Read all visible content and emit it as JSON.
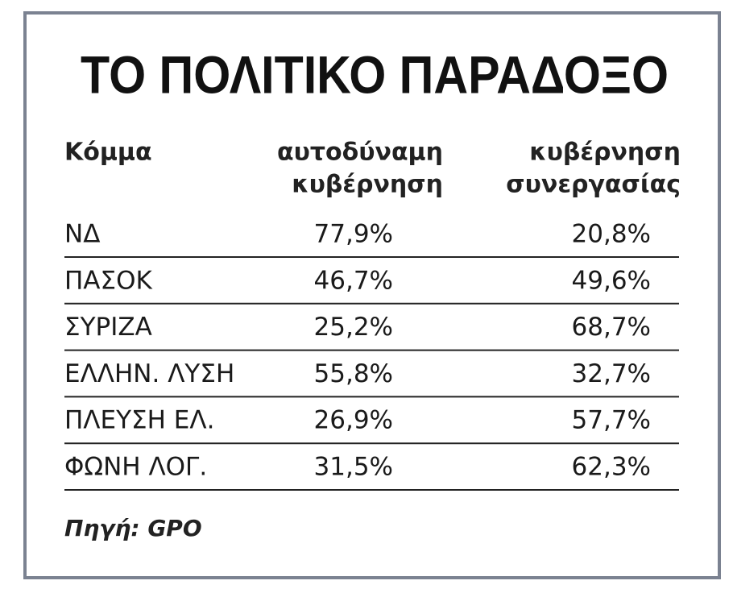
{
  "title": "ΤΟ ΠΟΛΙΤΙΚΟ ΠΑΡΑΔΟΞΟ",
  "table": {
    "header": [
      [
        "Κόμμα"
      ],
      [
        "αυτοδύναμη",
        "κυβέρνηση"
      ],
      [
        "κυβέρνηση",
        "συνεργασίας"
      ]
    ],
    "rows": [
      [
        "ΝΔ",
        "77,9%",
        "20,8%"
      ],
      [
        "ΠΑΣΟΚ",
        "46,7%",
        "49,6%"
      ],
      [
        "ΣΥΡΙΖΑ",
        "25,2%",
        "68,7%"
      ],
      [
        "ΕΛΛΗΝ. ΛΥΣΗ",
        "55,8%",
        "32,7%"
      ],
      [
        "ΠΛΕΥΣΗ ΕΛ.",
        "26,9%",
        "57,7%"
      ],
      [
        "ΦΩΝΗ ΛΟΓ.",
        "31,5%",
        "62,3%"
      ]
    ]
  },
  "source": "Πηγή: GPO"
}
